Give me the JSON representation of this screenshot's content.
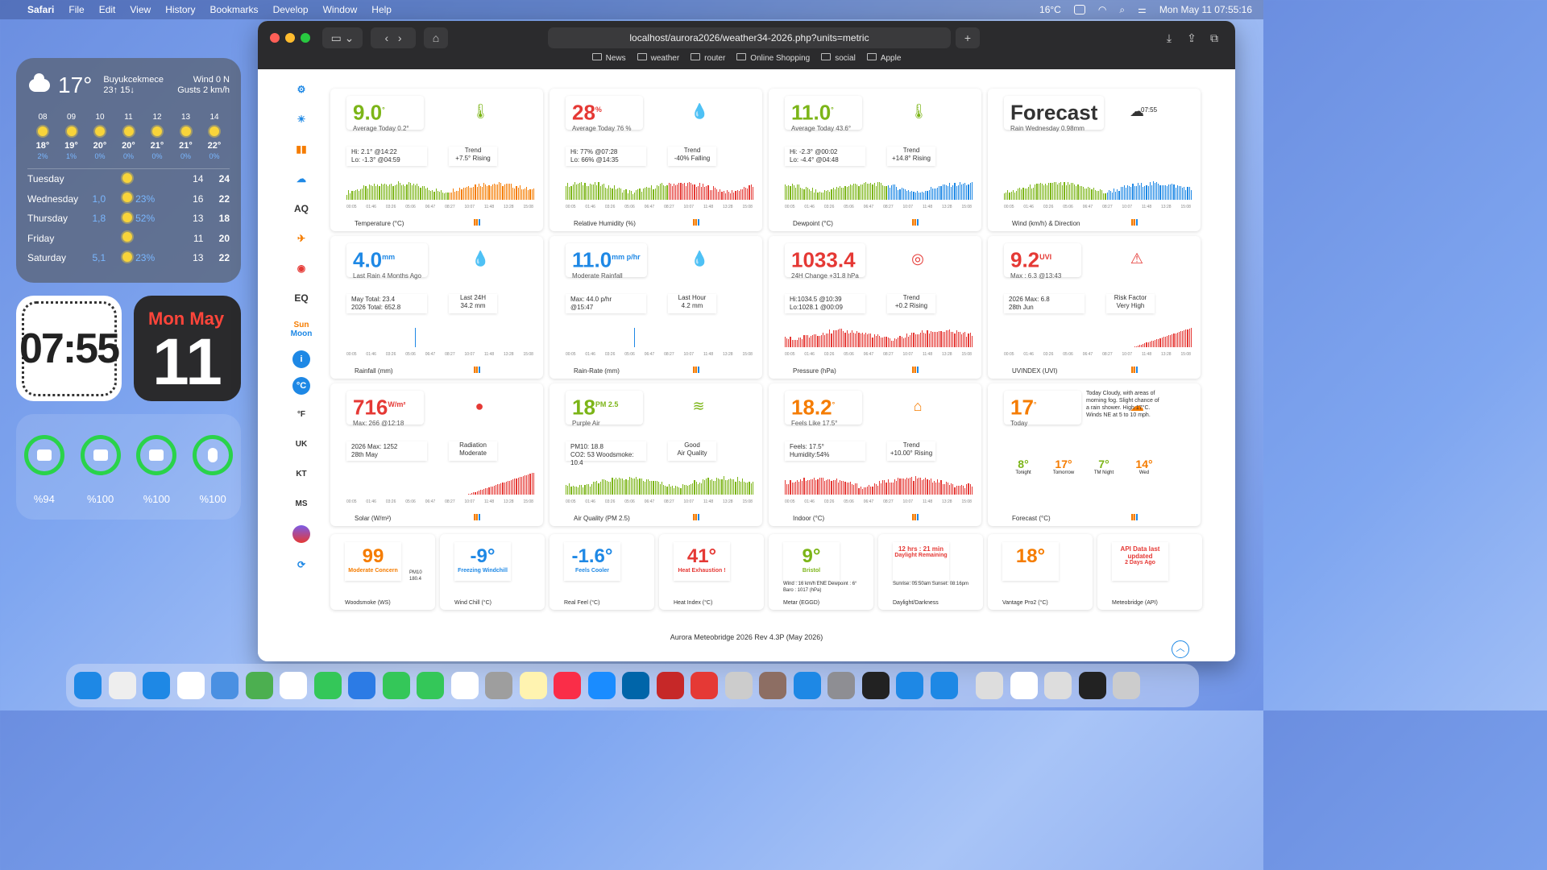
{
  "menubar": {
    "app": "Safari",
    "items": [
      "File",
      "Edit",
      "View",
      "History",
      "Bookmarks",
      "Develop",
      "Window",
      "Help"
    ],
    "temp": "16°C",
    "datetime": "Mon May 11  07:55:16"
  },
  "weather_widget": {
    "temp": "17°",
    "location": "Buyukcekmece",
    "hilo": "23↑ 15↓",
    "wind": "Wind 0 N",
    "gusts": "Gusts 2 km/h",
    "hours": [
      {
        "h": "08",
        "t": "18°",
        "p": "2%"
      },
      {
        "h": "09",
        "t": "19°",
        "p": "1%"
      },
      {
        "h": "10",
        "t": "20°",
        "p": "0%"
      },
      {
        "h": "11",
        "t": "20°",
        "p": "0%"
      },
      {
        "h": "12",
        "t": "21°",
        "p": "0%"
      },
      {
        "h": "13",
        "t": "21°",
        "p": "0%"
      },
      {
        "h": "14",
        "t": "22°",
        "p": "0%"
      }
    ],
    "days": [
      {
        "d": "Tuesday",
        "p": "",
        "p2": "",
        "lo": "14",
        "hi": "24"
      },
      {
        "d": "Wednesday",
        "p": "1,0",
        "p2": "23%",
        "lo": "16",
        "hi": "22"
      },
      {
        "d": "Thursday",
        "p": "1,8",
        "p2": "52%",
        "lo": "13",
        "hi": "18"
      },
      {
        "d": "Friday",
        "p": "",
        "p2": "",
        "lo": "11",
        "hi": "20"
      },
      {
        "d": "Saturday",
        "p": "5,1",
        "p2": "23%",
        "lo": "13",
        "hi": "22"
      }
    ]
  },
  "clock": {
    "time": "07:55"
  },
  "date_widget": {
    "dm": "Mon May",
    "day": "11"
  },
  "batteries": [
    "%94",
    "%100",
    "%100",
    "%100"
  ],
  "browser": {
    "url": "localhost/aurora2026/weather34-2026.php?units=metric",
    "bookmarks": [
      "News",
      "weather",
      "router",
      "Online Shopping",
      "social",
      "Apple"
    ]
  },
  "sidebar": [
    "AQ",
    "EQ",
    "Sun",
    "Moon",
    "°C",
    "°F",
    "UK",
    "KT",
    "MS"
  ],
  "axis": [
    "00:05",
    "01:46",
    "03:26",
    "05:06",
    "06:47",
    "08:27",
    "10:07",
    "11:48",
    "13:28",
    "15:08"
  ],
  "cards": [
    {
      "val": "9.0",
      "unit": "°",
      "sub": "Average Today 0.2°",
      "hl1": "Hi: 2.1° @14:22",
      "hl2": "Lo: -1.3° @04:59",
      "tr1": "Trend",
      "tr2": "+7.5° Rising",
      "title": "Temperature (°C)",
      "color": "#7cb518"
    },
    {
      "val": "28",
      "unit": "%",
      "sub": "Average Today 76 %",
      "hl1": "Hi: 77% @07:28",
      "hl2": "Lo: 66% @14:35",
      "tr1": "Trend",
      "tr2": "-40% Falling",
      "title": "Relative Humidity (%)",
      "color": "#e53935"
    },
    {
      "val": "11.0",
      "unit": "°",
      "sub": "Average Today 43.6°",
      "hl1": "Hi: -2.3° @00:02",
      "hl2": "Lo: -4.4° @04:48",
      "tr1": "Trend",
      "tr2": "+14.8° Rising",
      "title": "Dewpoint (°C)",
      "color": "#7cb518"
    },
    {
      "val": "Forecast",
      "unit": "",
      "sub": "Rain Wednesday 0.98mm",
      "hl1": "",
      "hl2": "",
      "tr1": "",
      "tr2": "",
      "title": "Wind (km/h) & Direction",
      "color": "#333"
    },
    {
      "val": "4.0",
      "unit": "mm",
      "sub": "Last Rain 4 Months Ago",
      "hl1": "May Total: 23.4",
      "hl2": "2026 Total: 652.8",
      "tr1": "Last 24H",
      "tr2": "34.2 mm",
      "title": "Rainfall (mm)",
      "color": "#1e88e5"
    },
    {
      "val": "11.0",
      "unit": "mm p/hr",
      "sub": "Moderate Rainfall",
      "hl1": "Max: 44.0 p/hr",
      "hl2": "@15:47",
      "tr1": "Last Hour",
      "tr2": "4.2 mm",
      "title": "Rain-Rate (mm)",
      "color": "#1e88e5"
    },
    {
      "val": "1033.4",
      "unit": "",
      "sub": "24H Change +31.8 hPa",
      "hl1": "Hi:1034.5 @10:39",
      "hl2": "Lo:1028.1 @00:09",
      "tr1": "Trend",
      "tr2": "+0.2 Rising",
      "title": "Pressure (hPa)",
      "color": "#e53935"
    },
    {
      "val": "9.2",
      "unit": "UVI",
      "sub": "Max : 6.3 @13:43",
      "hl1": "2026 Max: 6.8",
      "hl2": "28th Jun",
      "tr1": "Risk Factor",
      "tr2": "Very High",
      "title": "UVINDEX (UVI)",
      "color": "#e53935"
    },
    {
      "val": "716",
      "unit": "W/m²",
      "sub": "Max: 266 @12:18",
      "hl1": "2026 Max: 1252",
      "hl2": "28th May",
      "tr1": "Radiation",
      "tr2": "Moderate",
      "title": "Solar (W/m²)",
      "color": "#e53935"
    },
    {
      "val": "18",
      "unit": "PM 2.5",
      "sub": "Purple Air",
      "hl1": "PM10: 18.8",
      "hl2": "CO2: 53  Woodsmoke: 10.4",
      "tr1": "Good",
      "tr2": "Air Quality",
      "title": "Air Quality (PM 2.5)",
      "color": "#7cb518"
    },
    {
      "val": "18.2",
      "unit": "°",
      "sub": "Feels Like 17.5°",
      "hl1": "Feels: 17.5°",
      "hl2": "Humidity:54%",
      "tr1": "Trend",
      "tr2": "+10.00° Rising",
      "title": "Indoor (°C)",
      "color": "#f57c00"
    },
    {
      "val": "17",
      "unit": "°",
      "sub": "Today",
      "hl1": "",
      "hl2": "",
      "tr1": "",
      "tr2": "",
      "title": "Forecast (°C)",
      "color": "#f57c00"
    }
  ],
  "forecast_text": "Today Cloudy, with areas of morning fog. Slight chance of a rain shower. High 17°C. Winds NE at 5 to 10 mph.",
  "forecast_days": [
    {
      "t": "8°",
      "d": "Tonight"
    },
    {
      "t": "17°",
      "d": "Tomorrow"
    },
    {
      "t": "7°",
      "d": "TM Night"
    },
    {
      "t": "14°",
      "d": "Wed"
    }
  ],
  "wind_time": "07:55",
  "small": [
    {
      "v": "99",
      "s": "Moderate Concern",
      "x": "PM10 180.4",
      "t": "Woodsmoke (WS)",
      "c": "#f57c00"
    },
    {
      "v": "-9°",
      "s": "Freezing Windchill",
      "x": "",
      "t": "Wind Chill (°C)",
      "c": "#1e88e5"
    },
    {
      "v": "-1.6°",
      "s": "Feels Cooler",
      "x": "",
      "t": "Real Feel (°C)",
      "c": "#1e88e5"
    },
    {
      "v": "41°",
      "s": "Heat Exhaustion !",
      "x": "",
      "t": "Heat Index (°C)",
      "c": "#e53935"
    },
    {
      "v": "9°",
      "s": "Bristol",
      "x": "Wind : 16 km/h ENE Dewpoint : 6° Baro : 1017 (hPa)",
      "t": "Metar (EGGD)",
      "c": "#7cb518"
    },
    {
      "v": "12 hrs : 21 min",
      "s": "Daylight Remaining",
      "x": "Sunrise: 05:50am Sunset: 08:16pm",
      "t": "Daylight/Darkness",
      "c": "#e53935"
    },
    {
      "v": "18°",
      "s": "",
      "x": "",
      "t": "Vantage Pro2 (°C)",
      "c": "#f57c00"
    },
    {
      "v": "API Data last updated",
      "s": "2 Days Ago",
      "x": "",
      "t": "Meteobridge (API)",
      "c": "#e53935"
    }
  ],
  "footer": "Aurora Meteobridge 2026 Rev 4.3P (May 2026)",
  "dock": [
    "Finder",
    "Launchpad",
    "Safari",
    "Chrome",
    "Mail",
    "Maps",
    "Photos",
    "Messages",
    "Cloud",
    "FaceTime",
    "Phone",
    "Calendar",
    "Contacts",
    "Notes",
    "Music",
    "App Store",
    "VS Code",
    "FileZilla",
    "Tools",
    "Preview",
    "Folder",
    "iPhone",
    "Settings",
    "Terminal",
    "Files",
    "Xcode",
    "Finder2",
    "Docs",
    "Window",
    "Screen",
    "Trash"
  ]
}
